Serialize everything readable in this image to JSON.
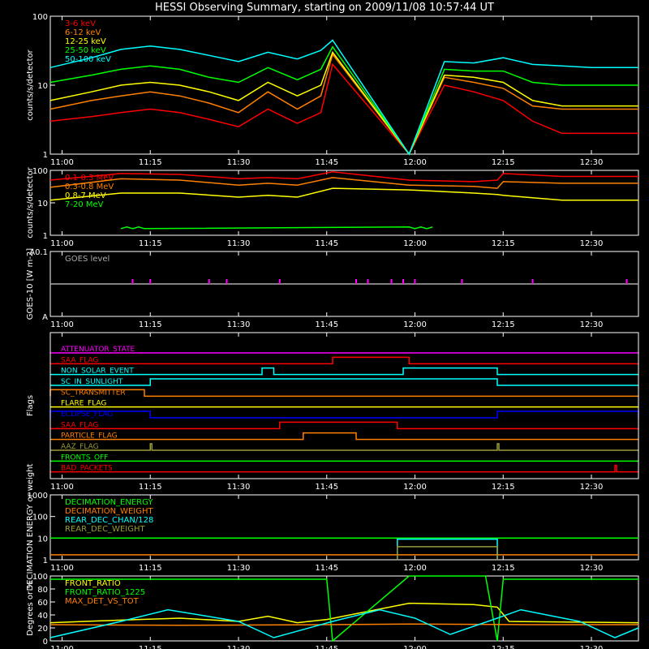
{
  "title": "HESSI Observing Summary, starting on 2009/11/08 10:57:44 UT",
  "colors": {
    "background": "#000000",
    "axis": "#ffffff",
    "red": "#ff0000",
    "orange": "#ff8000",
    "yellow": "#ffff00",
    "green": "#00ff00",
    "cyan": "#00ffff",
    "magenta": "#ff00ff",
    "blue": "#0000ff",
    "olive": "#9a9a3a",
    "gray": "#aaaaaa"
  },
  "chart_data": [
    {
      "id": "lo_energy",
      "type": "line",
      "ylabel": "counts/s/detector",
      "yscale": "log",
      "ylim": [
        1,
        100
      ],
      "ytick_labels": [
        "1",
        "10",
        "100"
      ],
      "x_tick_labels": [
        "11:00",
        "11:15",
        "11:30",
        "11:45",
        "12:00",
        "12:15",
        "12:30"
      ],
      "gap": [
        "11:46",
        "11:59"
      ],
      "series": [
        {
          "name": "3-6 keV",
          "color": "red",
          "x": [
            "10:58",
            "11:05",
            "11:10",
            "11:15",
            "11:20",
            "11:25",
            "11:30",
            "11:35",
            "11:40",
            "11:44",
            "11:46",
            "11:59",
            "12:05",
            "12:10",
            "12:15",
            "12:20",
            "12:25",
            "12:30",
            "12:38"
          ],
          "y": [
            3,
            3.5,
            4,
            4.5,
            4,
            3.2,
            2.5,
            4.5,
            2.8,
            4,
            20,
            1,
            10,
            8,
            6,
            3,
            2,
            2,
            2
          ]
        },
        {
          "name": "6-12 keV",
          "color": "orange",
          "x": [
            "10:58",
            "11:05",
            "11:10",
            "11:15",
            "11:20",
            "11:25",
            "11:30",
            "11:35",
            "11:40",
            "11:44",
            "11:46",
            "11:59",
            "12:05",
            "12:10",
            "12:15",
            "12:20",
            "12:25",
            "12:30",
            "12:38"
          ],
          "y": [
            4.5,
            6,
            7,
            8,
            7,
            5.5,
            4,
            8,
            4.5,
            7,
            28,
            1,
            13,
            11,
            9,
            5,
            4.5,
            4.5,
            4.5
          ]
        },
        {
          "name": "12-25 keV",
          "color": "yellow",
          "x": [
            "10:58",
            "11:05",
            "11:10",
            "11:15",
            "11:20",
            "11:25",
            "11:30",
            "11:35",
            "11:40",
            "11:44",
            "11:46",
            "11:59",
            "12:05",
            "12:10",
            "12:15",
            "12:20",
            "12:25",
            "12:30",
            "12:38"
          ],
          "y": [
            6,
            8,
            10,
            11,
            10,
            8,
            6,
            11,
            7,
            10,
            30,
            1,
            14,
            13,
            11,
            6,
            5,
            5,
            5
          ]
        },
        {
          "name": "25-50 keV",
          "color": "green",
          "x": [
            "10:58",
            "11:05",
            "11:10",
            "11:15",
            "11:20",
            "11:25",
            "11:30",
            "11:35",
            "11:40",
            "11:44",
            "11:46",
            "11:59",
            "12:05",
            "12:10",
            "12:15",
            "12:20",
            "12:25",
            "12:30",
            "12:38"
          ],
          "y": [
            11,
            14,
            17,
            19,
            17,
            13,
            11,
            18,
            12,
            17,
            36,
            1,
            17,
            16,
            16,
            11,
            10,
            10,
            10
          ]
        },
        {
          "name": "50-100 keV",
          "color": "cyan",
          "x": [
            "10:58",
            "11:05",
            "11:10",
            "11:15",
            "11:20",
            "11:25",
            "11:30",
            "11:35",
            "11:40",
            "11:44",
            "11:46",
            "11:59",
            "12:05",
            "12:10",
            "12:15",
            "12:20",
            "12:25",
            "12:30",
            "12:38"
          ],
          "y": [
            18,
            25,
            33,
            37,
            33,
            27,
            22,
            30,
            24,
            32,
            45,
            1,
            22,
            21,
            25,
            20,
            19,
            18,
            18
          ]
        }
      ]
    },
    {
      "id": "hi_energy",
      "type": "line",
      "ylabel": "counts/s/detector",
      "yscale": "log",
      "ylim": [
        1,
        100
      ],
      "ytick_labels": [
        "1",
        "10",
        "100"
      ],
      "x_tick_labels": [
        "11:00",
        "11:15",
        "11:30",
        "11:45",
        "12:00",
        "12:15",
        "12:30"
      ],
      "series": [
        {
          "name": "0.1-0.3 MeV",
          "color": "red",
          "x": [
            "10:58",
            "11:10",
            "11:20",
            "11:30",
            "11:35",
            "11:40",
            "11:46",
            "11:59",
            "12:10",
            "12:14",
            "12:15",
            "12:25",
            "12:38"
          ],
          "y": [
            50,
            80,
            75,
            55,
            60,
            55,
            90,
            50,
            45,
            50,
            80,
            65,
            65
          ]
        },
        {
          "name": "0.3-0.8 MeV",
          "color": "orange",
          "x": [
            "10:58",
            "11:10",
            "11:20",
            "11:30",
            "11:35",
            "11:40",
            "11:46",
            "11:59",
            "12:10",
            "12:14",
            "12:15",
            "12:25",
            "12:38"
          ],
          "y": [
            30,
            55,
            50,
            35,
            40,
            35,
            60,
            35,
            32,
            28,
            45,
            40,
            40
          ]
        },
        {
          "name": "0.8-7 MeV",
          "color": "yellow",
          "x": [
            "10:58",
            "11:10",
            "11:20",
            "11:30",
            "11:35",
            "11:40",
            "11:46",
            "11:59",
            "12:10",
            "12:14",
            "12:15",
            "12:25",
            "12:38"
          ],
          "y": [
            12,
            20,
            20,
            15,
            17,
            15,
            28,
            25,
            20,
            18,
            17,
            12,
            12
          ]
        },
        {
          "name": "7-20 MeV",
          "color": "green",
          "x": [
            "11:10",
            "11:11",
            "11:12",
            "11:13",
            "11:14",
            "11:59",
            "12:00",
            "12:01",
            "12:02",
            "12:03"
          ],
          "y": [
            1.6,
            1.8,
            1.6,
            1.8,
            1.6,
            1.8,
            1.6,
            1.8,
            1.6,
            1.8
          ]
        }
      ]
    },
    {
      "id": "goes",
      "type": "line",
      "ylabel": "GOES-10 [W m-2]",
      "ytick_labels": [
        "A",
        "A0.1"
      ],
      "x_tick_labels": [
        "11:00",
        "11:15",
        "11:30",
        "11:45",
        "12:00",
        "12:15",
        "12:30"
      ],
      "series": [
        {
          "name": "GOES level",
          "color": "gray",
          "x": [
            "10:58",
            "12:38"
          ],
          "y": [
            0.5,
            0.5
          ]
        }
      ],
      "spikes": [
        "11:12",
        "11:15",
        "11:25",
        "11:28",
        "11:37",
        "11:50",
        "11:52",
        "11:56",
        "11:58",
        "12:00",
        "12:08",
        "12:20",
        "12:36"
      ]
    },
    {
      "id": "flags",
      "type": "table",
      "ylabel": "Flags",
      "x_tick_labels": [
        "11:00",
        "11:15",
        "11:30",
        "11:45",
        "12:00",
        "12:15",
        "12:30"
      ],
      "rows": [
        {
          "name": "ATTENUATOR_STATE",
          "color": "magenta",
          "on": []
        },
        {
          "name": "SAA_FLAG",
          "color": "red",
          "on": [
            [
              "11:46",
              "11:59"
            ]
          ]
        },
        {
          "name": "NON_SOLAR_EVENT",
          "color": "cyan",
          "on": [
            [
              "11:34",
              "11:36"
            ],
            [
              "11:58",
              "12:14"
            ]
          ]
        },
        {
          "name": "SC_IN_SUNLIGHT",
          "color": "cyan",
          "on": [
            [
              "11:15",
              "12:14"
            ]
          ]
        },
        {
          "name": "SC_TRANSMITTER",
          "color": "orange",
          "on": [
            [
              "10:58",
              "11:14"
            ]
          ]
        },
        {
          "name": "FLARE_FLAG",
          "color": "yellow",
          "on": []
        },
        {
          "name": "ECLIPSE_FLAG",
          "color": "blue",
          "on": [
            [
              "10:58",
              "11:15"
            ],
            [
              "12:14",
              "12:38"
            ]
          ]
        },
        {
          "name": "SAA_FLAG",
          "color": "red",
          "on": [
            [
              "11:37",
              "11:57"
            ]
          ]
        },
        {
          "name": "PARTICLE_FLAG",
          "color": "orange",
          "on": [
            [
              "11:41",
              "11:50"
            ]
          ]
        },
        {
          "name": "AAZ_FLAG",
          "color": "olive",
          "on": [
            [
              "11:15",
              "11:15"
            ],
            [
              "12:14",
              "12:14"
            ]
          ]
        },
        {
          "name": "FRONTS_OFF",
          "color": "green",
          "on": []
        },
        {
          "name": "BAD_PACKETS",
          "color": "red",
          "on": [
            [
              "12:34",
              "12:34"
            ]
          ]
        }
      ]
    },
    {
      "id": "decimation",
      "type": "line",
      "ylabel": "DECIMATION ENERGY or weight",
      "yscale": "log",
      "ylim": [
        1,
        1000
      ],
      "ytick_labels": [
        "1",
        "10",
        "100",
        "1000"
      ],
      "x_tick_labels": [
        "11:00",
        "11:15",
        "11:30",
        "11:45",
        "12:00",
        "12:15",
        "12:30"
      ],
      "series": [
        {
          "name": "DECIMATION_ENERGY",
          "color": "green",
          "x": [
            "10:58",
            "12:38"
          ],
          "y": [
            10,
            10
          ]
        },
        {
          "name": "DECIMATION_WEIGHT",
          "color": "orange",
          "x": [
            "10:58",
            "12:38"
          ],
          "y": [
            1.7,
            1.7
          ]
        },
        {
          "name": "REAR_DEC_CHAN/128",
          "color": "cyan",
          "x": [
            "11:57",
            "11:57",
            "12:14",
            "12:14"
          ],
          "y": [
            1,
            9,
            9,
            1
          ]
        },
        {
          "name": "REAR_DEC_WEIGHT",
          "color": "olive",
          "x": [
            "11:57",
            "11:57",
            "12:14",
            "12:14"
          ],
          "y": [
            1,
            4,
            4,
            1
          ]
        }
      ]
    },
    {
      "id": "ratios",
      "type": "line",
      "ylabel": "Degrees or %",
      "ylim": [
        0,
        100
      ],
      "ytick_labels": [
        "0",
        "20",
        "40",
        "60",
        "80",
        "100"
      ],
      "x_tick_labels": [
        "11:00",
        "11:15",
        "11:30",
        "11:45",
        "12:00",
        "12:15",
        "12:30"
      ],
      "series": [
        {
          "name": "FRONT_RATIO",
          "color": "yellow",
          "x": [
            "10:58",
            "11:10",
            "11:20",
            "11:30",
            "11:35",
            "11:40",
            "11:45",
            "11:59",
            "12:10",
            "12:14",
            "12:16",
            "12:38"
          ],
          "y": [
            28,
            32,
            35,
            30,
            38,
            28,
            33,
            58,
            56,
            52,
            30,
            28
          ]
        },
        {
          "name": "FRONT_RATIO_1225",
          "color": "green",
          "x": [
            "10:58",
            "11:20",
            "11:45",
            "11:46",
            "11:59",
            "12:12",
            "12:14",
            "12:15",
            "12:38"
          ],
          "y": [
            95,
            95,
            95,
            0,
            100,
            100,
            0,
            95,
            95
          ]
        },
        {
          "name": "MAX_DET_VS_TOT",
          "color": "orange",
          "x": [
            "10:58",
            "11:20",
            "11:45",
            "11:59",
            "12:20",
            "12:38"
          ],
          "y": [
            25,
            24,
            25,
            26,
            25,
            25
          ]
        },
        {
          "name": "",
          "color": "cyan",
          "x": [
            "10:58",
            "11:10",
            "11:18",
            "11:30",
            "11:36",
            "11:46",
            "11:54",
            "12:00",
            "12:06",
            "12:14",
            "12:18",
            "12:28",
            "12:34",
            "12:38"
          ],
          "y": [
            5,
            30,
            48,
            30,
            5,
            30,
            48,
            35,
            10,
            35,
            48,
            30,
            5,
            20
          ]
        }
      ]
    }
  ]
}
